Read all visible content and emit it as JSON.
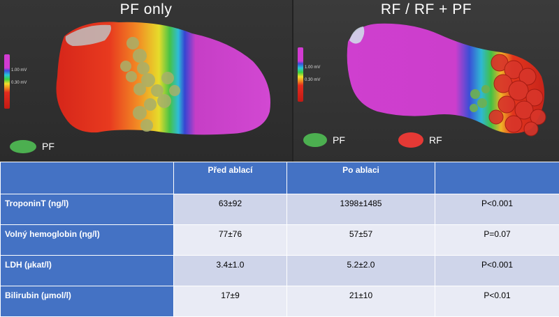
{
  "left_panel": {
    "title": "PF only",
    "scale": {
      "high": "1.00 mV",
      "low": "0.30 mV"
    },
    "legend": {
      "label": "PF",
      "color": "#4caf50"
    }
  },
  "right_panel": {
    "title": "RF / RF + PF",
    "scale": {
      "high": "1.00 mV",
      "low": "0.30 mV"
    },
    "legend": [
      {
        "label": "PF",
        "color": "#4caf50"
      },
      {
        "label": "RF",
        "color": "#e53935"
      }
    ]
  },
  "table": {
    "headers": [
      "",
      "Před ablací",
      "Po ablaci",
      ""
    ],
    "rows": [
      {
        "label": "TroponinT (ng/l)",
        "before": "63±92",
        "after": "1398±1485",
        "p": "P<0.001"
      },
      {
        "label": "Volný hemoglobin (ng/l)",
        "before": "77±76",
        "after": "57±57",
        "p": "P=0.07"
      },
      {
        "label": "LDH (µkat/l)",
        "before": "3.4±1.0",
        "after": "5.2±2.0",
        "p": "P<0.001"
      },
      {
        "label": "Bilirubin (µmol/l)",
        "before": "17±9",
        "after": "21±10",
        "p": "P<0.01"
      }
    ]
  },
  "colors": {
    "table_header": "#4472c4",
    "row_odd": "#cfd5ea",
    "row_even": "#e9ebf5",
    "map_high": "#cc33cc",
    "map_low": "#e8261c"
  }
}
